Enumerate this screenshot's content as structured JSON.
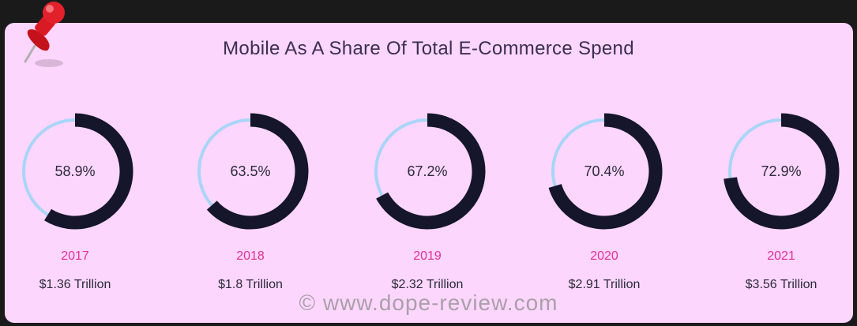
{
  "chart_data": {
    "type": "donut",
    "title": "Mobile As A Share Of Total E-Commerce Spend",
    "categories": [
      "2017",
      "2018",
      "2019",
      "2020",
      "2021"
    ],
    "values": [
      58.9,
      63.5,
      67.2,
      70.4,
      72.9
    ],
    "value_labels": [
      "58.9%",
      "63.5%",
      "67.2%",
      "70.4%",
      "72.9%"
    ],
    "totals": [
      "$1.36 Trillion",
      "$1.8 Trillion",
      "$2.32 Trillion",
      "$2.91 Trillion",
      "$3.56 Trillion"
    ],
    "ylim": [
      0,
      100
    ]
  },
  "colors": {
    "filled": "#15152b",
    "remainder": "#a9d5f7",
    "year": "#e0309a",
    "label": "#2b2b3b",
    "card": "#fdd6fd"
  },
  "watermark": "© www.dope-review.com",
  "icons": {
    "pin": "push-pin-icon"
  }
}
